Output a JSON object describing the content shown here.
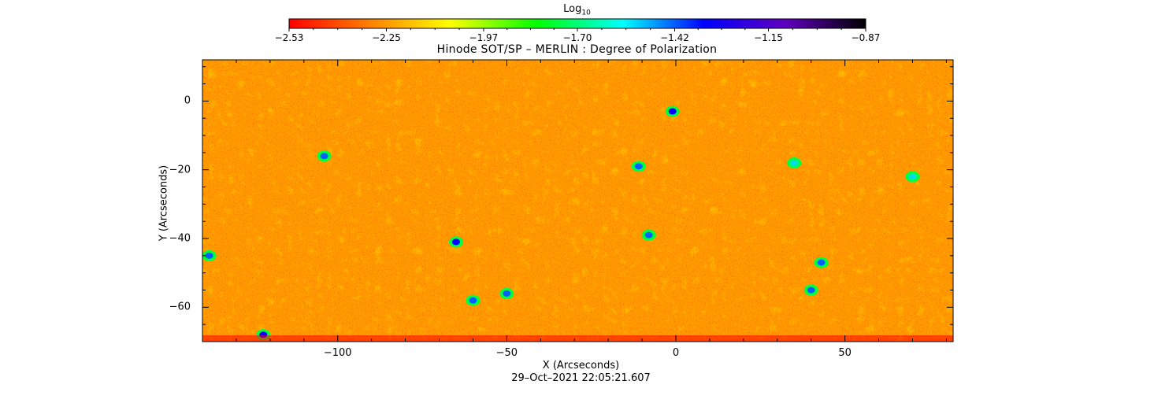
{
  "chart_data": {
    "type": "heatmap",
    "title": "Hinode SOT/SP – MERLIN : Degree of Polarization",
    "xlabel": "X (Arcseconds)",
    "ylabel": "Y (Arcseconds)",
    "footer": "29–Oct–2021 22:05:21.607",
    "xlim": [
      -140,
      82
    ],
    "ylim": [
      -70,
      12
    ],
    "xticks": [
      -100,
      -50,
      0,
      50
    ],
    "xtick_labels": [
      "−100",
      "−50",
      "0",
      "50"
    ],
    "yticks": [
      0,
      -20,
      -40,
      -60
    ],
    "ytick_labels": [
      "0",
      "−20",
      "−40",
      "−60"
    ],
    "colorbar": {
      "label_base": "Log",
      "label_sub": "10",
      "range": [
        -2.53,
        -0.87
      ],
      "ticks": [
        -2.53,
        -2.25,
        -1.97,
        -1.7,
        -1.42,
        -1.15,
        -0.87
      ],
      "tick_labels": [
        "−2.53",
        "−2.25",
        "−1.97",
        "−1.70",
        "−1.42",
        "−1.15",
        "−0.87"
      ],
      "colormap": [
        "#ff0000",
        "#ff8000",
        "#ffff00",
        "#00ff00",
        "#00ffff",
        "#0000ff",
        "#8000ff",
        "#000000"
      ]
    },
    "features": [
      {
        "x": -65,
        "y": -41,
        "value": -1.15
      },
      {
        "x": -50,
        "y": -56,
        "value": -1.3
      },
      {
        "x": -122,
        "y": -68,
        "value": -1.1
      },
      {
        "x": -11,
        "y": -19,
        "value": -1.3
      },
      {
        "x": -1,
        "y": -3,
        "value": -1.2
      },
      {
        "x": -8,
        "y": -39,
        "value": -1.4
      },
      {
        "x": 43,
        "y": -47,
        "value": -1.35
      },
      {
        "x": 40,
        "y": -55,
        "value": -1.35
      },
      {
        "x": -104,
        "y": -16,
        "value": -1.45
      },
      {
        "x": -138,
        "y": -45,
        "value": -1.3
      },
      {
        "x": -60,
        "y": -58,
        "value": -1.5
      },
      {
        "x": 70,
        "y": -22,
        "value": -1.55
      },
      {
        "x": 35,
        "y": -18,
        "value": -1.55
      }
    ]
  }
}
